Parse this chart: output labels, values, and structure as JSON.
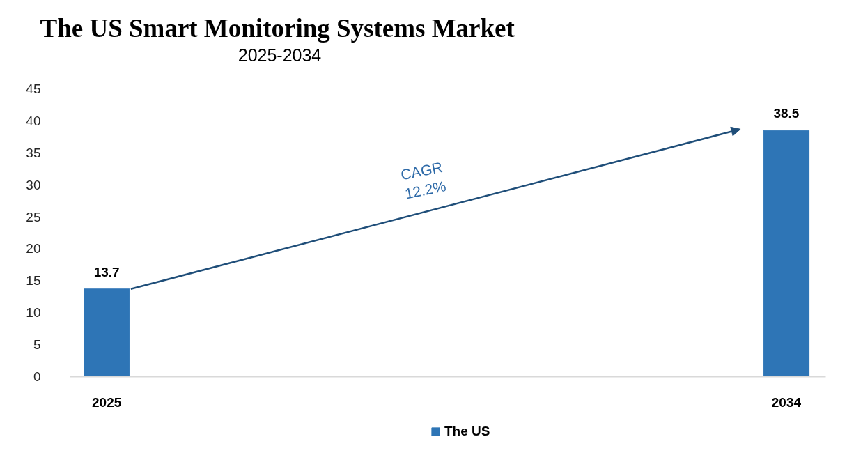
{
  "chart_data": {
    "type": "bar",
    "title": "The US Smart Monitoring Systems Market",
    "subtitle": "2025-2034",
    "categories": [
      "2025",
      "2034"
    ],
    "series": [
      {
        "name": "The US",
        "color": "#2e75b6",
        "values": [
          13.7,
          38.5
        ]
      }
    ],
    "ylim": [
      0,
      45
    ],
    "yticks": [
      0,
      5,
      10,
      15,
      20,
      25,
      30,
      35,
      40,
      45
    ],
    "grid": false,
    "legend": "bottom",
    "data_labels": true,
    "annotations": [
      "CAGR 12.2%"
    ]
  }
}
